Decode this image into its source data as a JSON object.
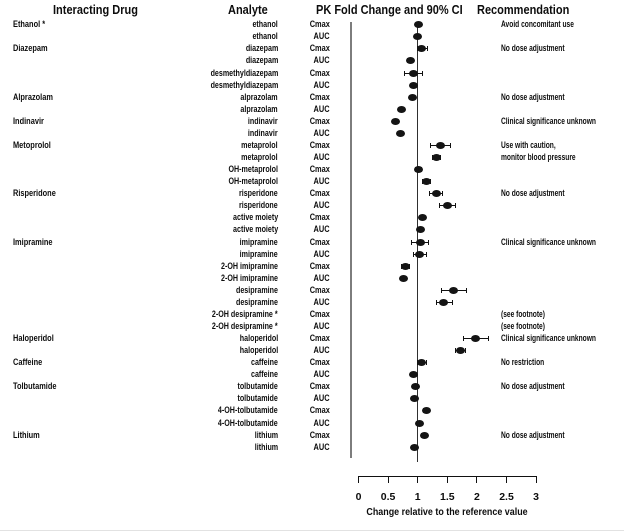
{
  "columns": {
    "interacting_drug": "Interacting Drug",
    "analyte": "Analyte",
    "pk_fold_change": "PK Fold Change and 90% CI",
    "recommendation": "Recommendation"
  },
  "axis": {
    "ticks": [
      0,
      0.5,
      1,
      1.5,
      2,
      2.5,
      3
    ],
    "tick_labels": [
      "0",
      "0.5",
      "1",
      "1.5",
      "2",
      "2.5",
      "3"
    ],
    "xlabel": "Change relative to the reference value",
    "range": [
      0,
      3
    ],
    "reference_value": 1
  },
  "colors": {
    "marker": "#141414",
    "reference_line": "#2f2f2f",
    "frame_line": "#7d7d7d",
    "text": "#0d0d0d",
    "background": "#ffffff"
  },
  "chart_data": {
    "type": "forest",
    "title": "PK Fold Change and 90% CI",
    "xlabel": "Change relative to the reference value",
    "xlim": [
      0,
      3
    ],
    "reference_line": 1,
    "rows": [
      {
        "drug": "Ethanol *",
        "analyte": "ethanol",
        "param": "Cmax",
        "value": 1.01,
        "ci_low": 0.98,
        "ci_high": 1.04,
        "recommendation": "Avoid concomitant use"
      },
      {
        "drug": "",
        "analyte": "ethanol",
        "param": "AUC",
        "value": 1.0,
        "ci_low": 0.97,
        "ci_high": 1.03,
        "recommendation": ""
      },
      {
        "drug": "Diazepam",
        "analyte": "diazepam",
        "param": "Cmax",
        "value": 1.07,
        "ci_low": 1.0,
        "ci_high": 1.16,
        "recommendation": "No dose adjustment"
      },
      {
        "drug": "",
        "analyte": "diazepam",
        "param": "AUC",
        "value": 0.87,
        "ci_low": 0.83,
        "ci_high": 0.91,
        "recommendation": ""
      },
      {
        "drug": "",
        "analyte": "desmethyldiazepam",
        "param": "Cmax",
        "value": 0.93,
        "ci_low": 0.78,
        "ci_high": 1.08,
        "recommendation": ""
      },
      {
        "drug": "",
        "analyte": "desmethyldiazepam",
        "param": "AUC",
        "value": 0.93,
        "ci_low": 0.89,
        "ci_high": 0.97,
        "recommendation": ""
      },
      {
        "drug": "Alprazolam",
        "analyte": "alprazolam",
        "param": "Cmax",
        "value": 0.91,
        "ci_low": 0.88,
        "ci_high": 0.94,
        "recommendation": "No dose adjustment"
      },
      {
        "drug": "",
        "analyte": "alprazolam",
        "param": "AUC",
        "value": 0.72,
        "ci_low": 0.69,
        "ci_high": 0.75,
        "recommendation": ""
      },
      {
        "drug": "Indinavir",
        "analyte": "indinavir",
        "param": "Cmax",
        "value": 0.62,
        "ci_low": 0.59,
        "ci_high": 0.65,
        "recommendation": "Clinical significance unknown"
      },
      {
        "drug": "",
        "analyte": "indinavir",
        "param": "AUC",
        "value": 0.71,
        "ci_low": 0.68,
        "ci_high": 0.74,
        "recommendation": ""
      },
      {
        "drug": "Metoprolol",
        "analyte": "metaprolol",
        "param": "Cmax",
        "value": 1.38,
        "ci_low": 1.21,
        "ci_high": 1.56,
        "recommendation": "Use with caution,"
      },
      {
        "drug": "",
        "analyte": "metaprolol",
        "param": "AUC",
        "value": 1.32,
        "ci_low": 1.25,
        "ci_high": 1.39,
        "recommendation": "monitor blood pressure"
      },
      {
        "drug": "",
        "analyte": "OH-metaprolol",
        "param": "Cmax",
        "value": 1.01,
        "ci_low": 0.96,
        "ci_high": 1.06,
        "recommendation": ""
      },
      {
        "drug": "",
        "analyte": "OH-metaprolol",
        "param": "AUC",
        "value": 1.15,
        "ci_low": 1.08,
        "ci_high": 1.22,
        "recommendation": ""
      },
      {
        "drug": "Risperidone",
        "analyte": "risperidone",
        "param": "Cmax",
        "value": 1.31,
        "ci_low": 1.2,
        "ci_high": 1.42,
        "recommendation": "No dose adjustment"
      },
      {
        "drug": "",
        "analyte": "risperidone",
        "param": "AUC",
        "value": 1.5,
        "ci_low": 1.36,
        "ci_high": 1.64,
        "recommendation": ""
      },
      {
        "drug": "",
        "analyte": "active moiety",
        "param": "Cmax",
        "value": 1.08,
        "ci_low": 1.04,
        "ci_high": 1.12,
        "recommendation": ""
      },
      {
        "drug": "",
        "analyte": "active moiety",
        "param": "AUC",
        "value": 1.04,
        "ci_low": 1.0,
        "ci_high": 1.08,
        "recommendation": ""
      },
      {
        "drug": "Imipramine",
        "analyte": "imipramine",
        "param": "Cmax",
        "value": 1.04,
        "ci_low": 0.9,
        "ci_high": 1.18,
        "recommendation": "Clinical significance unknown"
      },
      {
        "drug": "",
        "analyte": "imipramine",
        "param": "AUC",
        "value": 1.03,
        "ci_low": 0.92,
        "ci_high": 1.14,
        "recommendation": ""
      },
      {
        "drug": "",
        "analyte": "2-OH imipramine",
        "param": "Cmax",
        "value": 0.79,
        "ci_low": 0.72,
        "ci_high": 0.86,
        "recommendation": ""
      },
      {
        "drug": "",
        "analyte": "2-OH imipramine",
        "param": "AUC",
        "value": 0.76,
        "ci_low": 0.72,
        "ci_high": 0.8,
        "recommendation": ""
      },
      {
        "drug": "",
        "analyte": "desipramine",
        "param": "Cmax",
        "value": 1.6,
        "ci_low": 1.4,
        "ci_high": 1.82,
        "recommendation": ""
      },
      {
        "drug": "",
        "analyte": "desipramine",
        "param": "AUC",
        "value": 1.43,
        "ci_low": 1.31,
        "ci_high": 1.58,
        "recommendation": ""
      },
      {
        "drug": "",
        "analyte": "2-OH desipramine *",
        "param": "Cmax",
        "value": null,
        "ci_low": null,
        "ci_high": null,
        "recommendation": "(see footnote)"
      },
      {
        "drug": "",
        "analyte": "2-OH desipramine *",
        "param": "AUC",
        "value": null,
        "ci_low": null,
        "ci_high": null,
        "recommendation": "(see footnote)"
      },
      {
        "drug": "Haloperidol",
        "analyte": "haloperidol",
        "param": "Cmax",
        "value": 1.97,
        "ci_low": 1.77,
        "ci_high": 2.19,
        "recommendation": "Clinical significance unknown"
      },
      {
        "drug": "",
        "analyte": "haloperidol",
        "param": "AUC",
        "value": 1.72,
        "ci_low": 1.64,
        "ci_high": 1.81,
        "recommendation": ""
      },
      {
        "drug": "Caffeine",
        "analyte": "caffeine",
        "param": "Cmax",
        "value": 1.07,
        "ci_low": 0.99,
        "ci_high": 1.15,
        "recommendation": "No restriction"
      },
      {
        "drug": "",
        "analyte": "caffeine",
        "param": "AUC",
        "value": 0.93,
        "ci_low": 0.89,
        "ci_high": 0.97,
        "recommendation": ""
      },
      {
        "drug": "Tolbutamide",
        "analyte": "tolbutamide",
        "param": "Cmax",
        "value": 0.97,
        "ci_low": 0.94,
        "ci_high": 1.0,
        "recommendation": "No dose adjustment"
      },
      {
        "drug": "",
        "analyte": "tolbutamide",
        "param": "AUC",
        "value": 0.94,
        "ci_low": 0.91,
        "ci_high": 0.97,
        "recommendation": ""
      },
      {
        "drug": "",
        "analyte": "4-OH-tolbutamide",
        "param": "Cmax",
        "value": 1.14,
        "ci_low": 1.1,
        "ci_high": 1.18,
        "recommendation": ""
      },
      {
        "drug": "",
        "analyte": "4-OH-tolbutamide",
        "param": "AUC",
        "value": 1.03,
        "ci_low": 1.0,
        "ci_high": 1.06,
        "recommendation": ""
      },
      {
        "drug": "Lithium",
        "analyte": "lithium",
        "param": "Cmax",
        "value": 1.11,
        "ci_low": 1.07,
        "ci_high": 1.15,
        "recommendation": "No dose adjustment"
      },
      {
        "drug": "",
        "analyte": "lithium",
        "param": "AUC",
        "value": 0.95,
        "ci_low": 0.92,
        "ci_high": 0.98,
        "recommendation": ""
      }
    ]
  }
}
